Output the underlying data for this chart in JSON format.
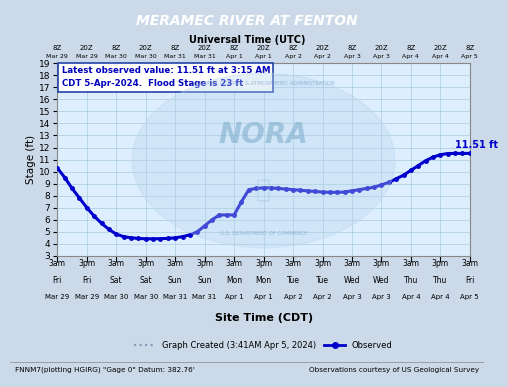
{
  "title": "MERAMEC RIVER AT FENTON",
  "subtitle_utc": "Universal Time (UTC)",
  "subtitle_cdt": "Site Time (CDT)",
  "ylabel": "Stage (ft)",
  "bg_color": "#ccd9e8",
  "plot_bg_color": "#ddeeff",
  "title_bg_color": "#000090",
  "title_text_color": "#ffffff",
  "line_color": "#0000cc",
  "grid_color": "#aaccdd",
  "ylim": [
    3,
    19
  ],
  "annotation_text1": "Latest observed value: 11.51 ft at 3:15 AM",
  "annotation_text2": "CDT 5-Apr-2024.  Flood Stage is 23 ft",
  "end_label": "11.51 ft",
  "bottom_left": "FNNM7(plotting HGIRG) \"Gage 0\" Datum: 382.76'",
  "bottom_right": "Observations courtesy of US Geological Survey",
  "legend_line1": "Graph Created (3:41AM Apr 5, 2024)",
  "legend_line2": "Observed",
  "utc_ticks": [
    "8Z",
    "20Z",
    "8Z",
    "20Z",
    "8Z",
    "20Z",
    "8Z",
    "20Z",
    "8Z",
    "20Z",
    "8Z",
    "20Z",
    "8Z",
    "20Z",
    "8Z"
  ],
  "utc_dates": [
    "Mar 29",
    "Mar 29",
    "Mar 30",
    "Mar 30",
    "Mar 31",
    "Mar 31",
    "Apr 1",
    "Apr 1",
    "Apr 2",
    "Apr 2",
    "Apr 3",
    "Apr 3",
    "Apr 4",
    "Apr 4",
    "Apr 5"
  ],
  "bottom_ticks_time": [
    "3am",
    "3pm",
    "3am",
    "3pm",
    "3am",
    "3pm",
    "3am",
    "3pm",
    "3am",
    "3pm",
    "3am",
    "3pm",
    "3am",
    "3pm",
    "3am"
  ],
  "bottom_ticks_day": [
    "Fri",
    "Fri",
    "Sat",
    "Sat",
    "Sun",
    "Sun",
    "Mon",
    "Mon",
    "Tue",
    "Tue",
    "Wed",
    "Wed",
    "Thu",
    "Thu",
    "Fri"
  ],
  "bottom_ticks_date": [
    "Mar 29",
    "Mar 29",
    "Mar 30",
    "Mar 30",
    "Mar 31",
    "Mar 31",
    "Apr 1",
    "Apr 1",
    "Apr 2",
    "Apr 2",
    "Apr 3",
    "Apr 3",
    "Apr 4",
    "Apr 4",
    "Apr 5"
  ],
  "x_values": [
    0,
    0.5,
    1,
    1.5,
    2,
    2.5,
    3,
    3.5,
    4,
    4.5,
    5,
    5.5,
    6,
    6.5,
    7,
    7.5,
    8,
    8.5,
    9,
    9.5,
    10,
    10.5,
    11,
    11.5,
    12,
    12.5,
    13,
    13.5,
    14,
    14.5,
    15,
    15.5,
    16,
    16.5,
    17,
    17.5,
    18,
    18.5,
    19,
    19.5,
    20,
    20.5,
    21,
    21.5,
    22,
    22.5,
    23,
    23.5,
    24,
    24.5,
    25,
    25.5,
    26,
    26.5,
    27,
    27.5,
    28
  ],
  "y_values": [
    10.3,
    9.5,
    8.6,
    7.8,
    7.0,
    6.3,
    5.7,
    5.2,
    4.8,
    4.6,
    4.5,
    4.45,
    4.42,
    4.42,
    4.43,
    4.45,
    4.5,
    4.6,
    4.75,
    5.0,
    5.5,
    6.0,
    6.4,
    6.4,
    6.4,
    7.5,
    8.5,
    8.6,
    8.65,
    8.65,
    8.6,
    8.55,
    8.5,
    8.45,
    8.4,
    8.35,
    8.3,
    8.28,
    8.28,
    8.3,
    8.4,
    8.5,
    8.6,
    8.7,
    8.9,
    9.1,
    9.4,
    9.7,
    10.1,
    10.5,
    10.9,
    11.2,
    11.4,
    11.5,
    11.51,
    11.51,
    11.51
  ]
}
